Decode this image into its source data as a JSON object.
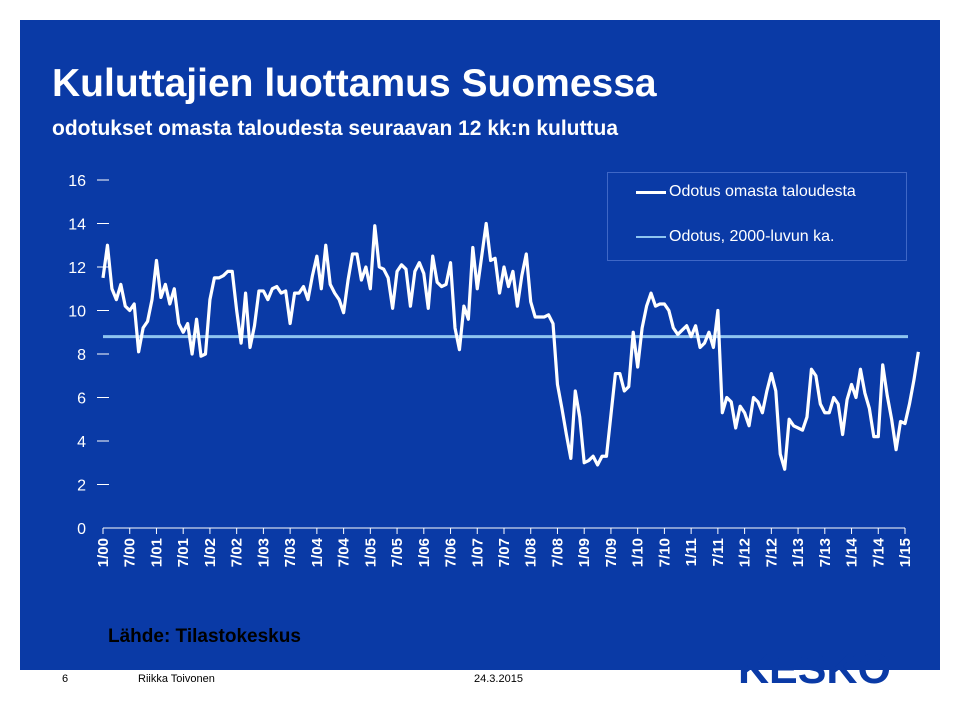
{
  "title": "Kuluttajien luottamus Suomessa",
  "subtitle": "odotukset omasta taloudesta seuraavan 12 kk:n kuluttua",
  "source": "Lähde: Tilastokeskus",
  "footer": {
    "page": "6",
    "author": "Riikka Toivonen",
    "date": "24.3.2015"
  },
  "logo_text": "KESKO",
  "colors": {
    "background": "#0a3aa6",
    "series_main": "#ffffff",
    "series_avg": "#8ec4f0",
    "text": "#ffffff",
    "logo": "#0a3aa6"
  },
  "chart_data": {
    "type": "line",
    "title": "Kuluttajien luottamus Suomessa",
    "subtitle": "odotukset omasta taloudesta seuraavan 12 kk:n kuluttua",
    "xlabel": "",
    "ylabel": "",
    "ylim": [
      0,
      16
    ],
    "yticks": [
      0,
      2,
      4,
      6,
      8,
      10,
      12,
      14,
      16
    ],
    "xtick_labels": [
      "1/00",
      "7/00",
      "1/01",
      "7/01",
      "1/02",
      "7/02",
      "1/03",
      "7/03",
      "1/04",
      "7/04",
      "1/05",
      "7/05",
      "1/06",
      "7/06",
      "1/07",
      "7/07",
      "1/08",
      "7/08",
      "1/09",
      "7/09",
      "1/10",
      "7/10",
      "1/11",
      "7/11",
      "1/12",
      "7/12",
      "1/13",
      "7/13",
      "1/14",
      "7/14",
      "1/15"
    ],
    "legend_position": "top-right",
    "grid": false,
    "series": [
      {
        "name": "Odotus omasta taloudesta",
        "start": "1/00",
        "frequency": "monthly",
        "values": [
          11.5,
          13.0,
          11.0,
          10.5,
          11.2,
          10.2,
          10.0,
          10.3,
          8.1,
          9.2,
          9.5,
          10.5,
          12.3,
          10.6,
          11.2,
          10.3,
          11.0,
          9.4,
          9.0,
          9.4,
          8.0,
          9.6,
          7.9,
          8.0,
          10.5,
          11.5,
          11.5,
          11.6,
          11.8,
          11.8,
          10.0,
          8.5,
          10.8,
          8.3,
          9.3,
          10.9,
          10.9,
          10.5,
          11.0,
          11.1,
          10.8,
          10.9,
          9.4,
          10.8,
          10.8,
          11.1,
          10.5,
          11.6,
          12.5,
          11.0,
          13.0,
          11.2,
          10.8,
          10.5,
          9.9,
          11.4,
          12.6,
          12.6,
          11.4,
          12.0,
          11.0,
          13.9,
          12.0,
          11.9,
          11.5,
          10.1,
          11.8,
          12.1,
          11.9,
          10.2,
          11.8,
          12.2,
          11.7,
          10.1,
          12.5,
          11.3,
          11.1,
          11.2,
          12.2,
          9.2,
          8.2,
          10.2,
          9.6,
          12.9,
          11.0,
          12.5,
          14.0,
          12.3,
          12.4,
          10.8,
          12.0,
          11.1,
          11.8,
          10.2,
          11.6,
          12.6,
          10.4,
          9.7,
          9.7,
          9.7,
          9.8,
          9.4,
          6.6,
          5.5,
          4.3,
          3.2,
          6.3,
          5.1,
          3.0,
          3.1,
          3.3,
          2.9,
          3.3,
          3.3,
          5.2,
          7.1,
          7.1,
          6.3,
          6.5,
          9.0,
          7.4,
          9.2,
          10.2,
          10.8,
          10.2,
          10.3,
          10.3,
          10.0,
          9.2,
          8.9,
          9.1,
          9.3,
          8.8,
          9.3,
          8.3,
          8.5,
          9.0,
          8.3,
          10.0,
          5.3,
          6.0,
          5.8,
          4.6,
          5.6,
          5.3,
          4.7,
          6.0,
          5.8,
          5.3,
          6.3,
          7.1,
          6.3,
          3.4,
          2.7,
          5.0,
          4.7,
          4.6,
          4.5,
          5.1,
          7.3,
          7.0,
          5.7,
          5.3,
          5.3,
          6.0,
          5.7,
          4.3,
          5.9,
          6.6,
          6.0,
          7.3,
          6.2,
          5.5,
          4.2,
          4.2,
          7.5,
          6.1,
          5.0,
          3.6,
          4.9,
          4.8,
          5.7,
          6.8,
          8.1
        ]
      },
      {
        "name": "Odotus, 2000-luvun ka.",
        "values": [
          8.8,
          8.8
        ]
      }
    ]
  }
}
